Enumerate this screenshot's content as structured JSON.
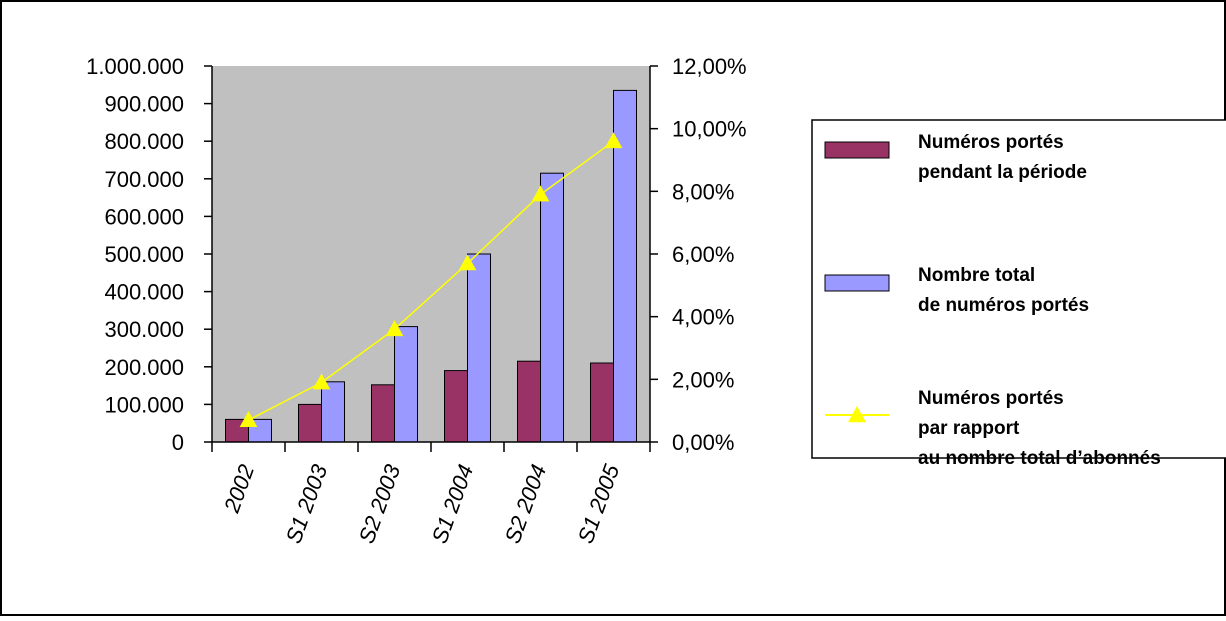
{
  "chart_data": {
    "type": "bar",
    "categories": [
      "2002",
      "S1 2003",
      "S2 2003",
      "S1 2004",
      "S2 2004",
      "S1 2005"
    ],
    "series": [
      {
        "name": "Numéros portés pendant la période",
        "legend_lines": [
          "Numéros portés",
          "pendant la période"
        ],
        "type": "bar",
        "axis": "left",
        "color": "#993366",
        "values": [
          60000,
          100000,
          152000,
          190000,
          215000,
          210000
        ]
      },
      {
        "name": "Nombre total de numéros portés",
        "legend_lines": [
          "Nombre total",
          "de numéros portés"
        ],
        "type": "bar",
        "axis": "left",
        "color": "#9999ff",
        "values": [
          60000,
          160000,
          307000,
          500000,
          715000,
          935000
        ]
      },
      {
        "name": "Numéros portés par rapport au nombre total d’abonnés",
        "legend_lines": [
          "Numéros portés",
          "par rapport",
          "au nombre total d’abonnés"
        ],
        "type": "line",
        "axis": "right",
        "color": "#ffff00",
        "values": [
          0.7,
          1.9,
          3.6,
          5.7,
          7.9,
          9.6
        ]
      }
    ],
    "y_left": {
      "ylim": [
        0,
        1000000
      ],
      "ticks": [
        0,
        100000,
        200000,
        300000,
        400000,
        500000,
        600000,
        700000,
        800000,
        900000,
        1000000
      ],
      "tick_labels": [
        "0",
        "100.000",
        "200.000",
        "300.000",
        "400.000",
        "500.000",
        "600.000",
        "700.000",
        "800.000",
        "900.000",
        "1.000.000"
      ]
    },
    "y_right": {
      "ylim": [
        0,
        12
      ],
      "ticks": [
        0,
        2,
        4,
        6,
        8,
        10,
        12
      ],
      "tick_labels": [
        "0,00%",
        "2,00%",
        "4,00%",
        "6,00%",
        "8,00%",
        "10,00%",
        "12,00%"
      ]
    },
    "plot_background": "#c0c0c0",
    "grid": false,
    "legend_position": "right"
  }
}
